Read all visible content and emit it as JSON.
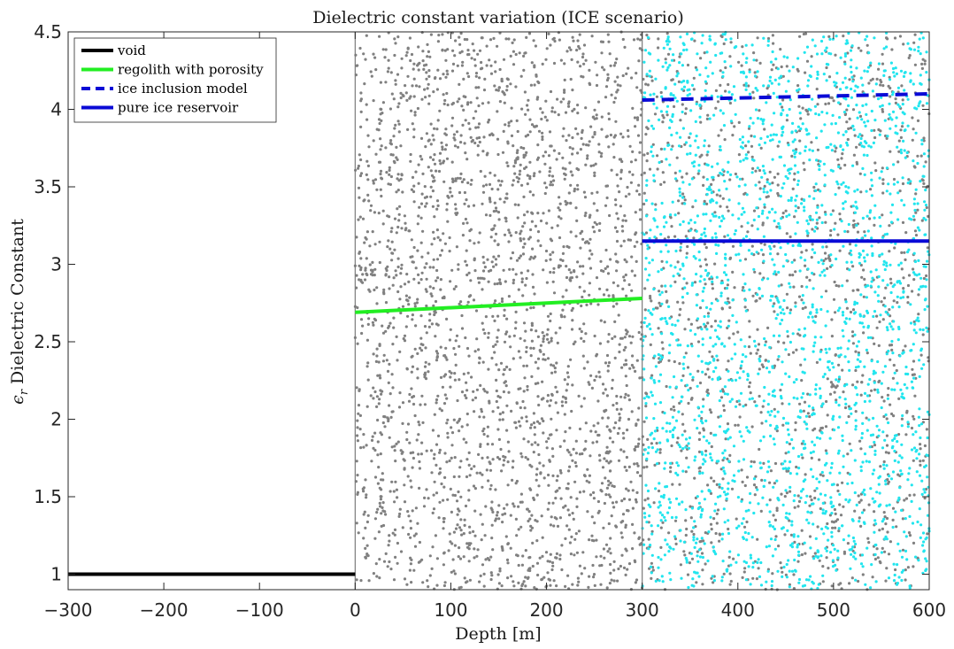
{
  "chart_data": {
    "type": "line",
    "title": "Dielectric constant variation (ICE scenario)",
    "xlabel": "Depth [m]",
    "ylabel": "Dielectric Constant",
    "ylabel_symbol": "ϵ",
    "ylabel_symbol_sub": "r",
    "xlim": [
      -300,
      600
    ],
    "ylim": [
      0.9,
      4.5
    ],
    "xticks": [
      -300,
      -200,
      -100,
      0,
      100,
      200,
      300,
      400,
      500,
      600
    ],
    "xtick_labels": [
      "−300",
      "−200",
      "−100",
      "0",
      "100",
      "200",
      "300",
      "400",
      "500",
      "600"
    ],
    "yticks": [
      1,
      1.5,
      2,
      2.5,
      3,
      3.5,
      4,
      4.5
    ],
    "ytick_labels": [
      "1",
      "1.5",
      "2",
      "2.5",
      "3",
      "3.5",
      "4",
      "4.5"
    ],
    "grid": false,
    "legend_position": "top-left",
    "boundaries_x": [
      0,
      300
    ],
    "series": [
      {
        "name": "void",
        "color": "#000000",
        "style": "solid",
        "x": [
          -300,
          0
        ],
        "y": [
          1.0,
          1.0
        ]
      },
      {
        "name": "regolith with porosity",
        "color": "#22ee22",
        "style": "solid",
        "x": [
          0,
          300
        ],
        "y": [
          2.69,
          2.78
        ]
      },
      {
        "name": "ice inclusion model",
        "color": "#0a0ad6",
        "style": "dashed",
        "x": [
          300,
          600
        ],
        "y": [
          4.06,
          4.1
        ]
      },
      {
        "name": "pure ice reservoir",
        "color": "#0a0ad6",
        "style": "solid",
        "x": [
          300,
          600
        ],
        "y": [
          3.15,
          3.15
        ]
      }
    ],
    "scatter_regions": [
      {
        "name": "regolith particles",
        "color": "#808080",
        "x_range": [
          0,
          300
        ],
        "y_range": [
          0.9,
          4.5
        ],
        "count": 2600
      },
      {
        "name": "regolith particles",
        "color": "#808080",
        "x_range": [
          300,
          600
        ],
        "y_range": [
          0.9,
          4.5
        ],
        "count": 1300
      },
      {
        "name": "ice particles",
        "color": "#22e5ee",
        "x_range": [
          300,
          600
        ],
        "y_range": [
          0.9,
          4.5
        ],
        "count": 2200
      }
    ]
  }
}
